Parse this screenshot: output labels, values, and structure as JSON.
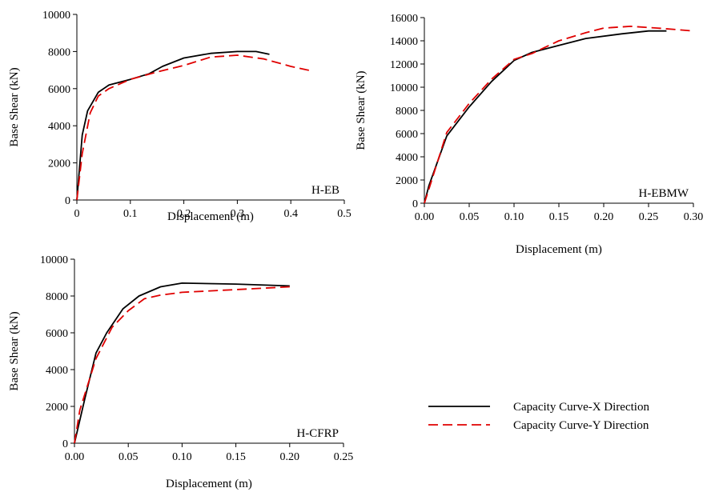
{
  "chart_data": [
    {
      "type": "line",
      "panel_label": "H-EB",
      "xlabel": "Displacement (m)",
      "ylabel": "Base Shear (kN)",
      "xlim": [
        0,
        0.5
      ],
      "ylim": [
        0,
        10000
      ],
      "x_ticks": [
        "0",
        "0.1",
        "0.2",
        "0.3",
        "0.4",
        "0.5"
      ],
      "y_ticks": [
        "0",
        "2000",
        "4000",
        "6000",
        "8000",
        "10000"
      ],
      "x_tick_values": [
        0,
        0.1,
        0.2,
        0.3,
        0.4,
        0.5
      ],
      "y_tick_values": [
        0,
        2000,
        4000,
        6000,
        8000,
        10000
      ],
      "series": [
        {
          "color": "#000000",
          "style": "solid",
          "points": [
            [
              0,
              0
            ],
            [
              0.01,
              3500
            ],
            [
              0.02,
              4800
            ],
            [
              0.04,
              5800
            ],
            [
              0.06,
              6200
            ],
            [
              0.1,
              6500
            ],
            [
              0.135,
              6800
            ],
            [
              0.16,
              7200
            ],
            [
              0.2,
              7650
            ],
            [
              0.25,
              7900
            ],
            [
              0.3,
              8000
            ],
            [
              0.335,
              8000
            ],
            [
              0.36,
              7850
            ]
          ]
        },
        {
          "color": "#e00000",
          "style": "dashed",
          "points": [
            [
              0,
              0
            ],
            [
              0.01,
              2500
            ],
            [
              0.025,
              4700
            ],
            [
              0.04,
              5600
            ],
            [
              0.06,
              6000
            ],
            [
              0.1,
              6500
            ],
            [
              0.15,
              6900
            ],
            [
              0.2,
              7250
            ],
            [
              0.25,
              7700
            ],
            [
              0.3,
              7800
            ],
            [
              0.35,
              7600
            ],
            [
              0.4,
              7200
            ],
            [
              0.44,
              6950
            ]
          ]
        }
      ]
    },
    {
      "type": "line",
      "panel_label": "H-EBMW",
      "xlabel": "Displacement (m)",
      "ylabel": "Base Shear (kN)",
      "xlim": [
        0,
        0.3
      ],
      "ylim": [
        0,
        16000
      ],
      "x_ticks": [
        "0.00",
        "0.05",
        "0.10",
        "0.15",
        "0.20",
        "0.25",
        "0.30"
      ],
      "y_ticks": [
        "0",
        "2000",
        "4000",
        "6000",
        "8000",
        "10000",
        "12000",
        "14000",
        "16000"
      ],
      "x_tick_values": [
        0,
        0.05,
        0.1,
        0.15,
        0.2,
        0.25,
        0.3
      ],
      "y_tick_values": [
        0,
        2000,
        4000,
        6000,
        8000,
        10000,
        12000,
        14000,
        16000
      ],
      "series": [
        {
          "color": "#000000",
          "style": "solid",
          "points": [
            [
              0,
              0
            ],
            [
              0.005,
              1500
            ],
            [
              0.025,
              5800
            ],
            [
              0.05,
              8300
            ],
            [
              0.075,
              10500
            ],
            [
              0.1,
              12300
            ],
            [
              0.12,
              13000
            ],
            [
              0.15,
              13600
            ],
            [
              0.18,
              14200
            ],
            [
              0.22,
              14600
            ],
            [
              0.25,
              14850
            ],
            [
              0.27,
              14850
            ]
          ]
        },
        {
          "color": "#e00000",
          "style": "dashed",
          "points": [
            [
              0,
              0
            ],
            [
              0.005,
              1200
            ],
            [
              0.025,
              6100
            ],
            [
              0.05,
              8600
            ],
            [
              0.075,
              10700
            ],
            [
              0.1,
              12400
            ],
            [
              0.12,
              12900
            ],
            [
              0.15,
              14000
            ],
            [
              0.18,
              14700
            ],
            [
              0.2,
              15100
            ],
            [
              0.23,
              15250
            ],
            [
              0.26,
              15100
            ],
            [
              0.3,
              14850
            ]
          ]
        }
      ]
    },
    {
      "type": "line",
      "panel_label": "H-CFRP",
      "xlabel": "Displacement (m)",
      "ylabel": "Base Shear (kN)",
      "xlim": [
        0,
        0.25
      ],
      "ylim": [
        0,
        10000
      ],
      "x_ticks": [
        "0.00",
        "0.05",
        "0.10",
        "0.15",
        "0.20",
        "0.25"
      ],
      "y_ticks": [
        "0",
        "2000",
        "4000",
        "6000",
        "8000",
        "10000"
      ],
      "x_tick_values": [
        0,
        0.05,
        0.1,
        0.15,
        0.2,
        0.25
      ],
      "y_tick_values": [
        0,
        2000,
        4000,
        6000,
        8000,
        10000
      ],
      "series": [
        {
          "color": "#000000",
          "style": "solid",
          "points": [
            [
              0,
              0
            ],
            [
              0.01,
              2500
            ],
            [
              0.02,
              4900
            ],
            [
              0.03,
              6000
            ],
            [
              0.045,
              7300
            ],
            [
              0.06,
              8000
            ],
            [
              0.08,
              8500
            ],
            [
              0.1,
              8700
            ],
            [
              0.15,
              8650
            ],
            [
              0.2,
              8550
            ]
          ]
        },
        {
          "color": "#e00000",
          "style": "dashed",
          "points": [
            [
              0,
              0
            ],
            [
              0.005,
              1800
            ],
            [
              0.02,
              4600
            ],
            [
              0.035,
              6300
            ],
            [
              0.05,
              7200
            ],
            [
              0.065,
              7850
            ],
            [
              0.08,
              8050
            ],
            [
              0.1,
              8200
            ],
            [
              0.15,
              8350
            ],
            [
              0.2,
              8500
            ]
          ]
        }
      ]
    }
  ],
  "legend": {
    "items": [
      {
        "label": "Capacity Curve-X Direction",
        "color": "#000000",
        "style": "solid"
      },
      {
        "label": "Capacity Curve-Y Direction",
        "color": "#e00000",
        "style": "dashed"
      }
    ]
  }
}
